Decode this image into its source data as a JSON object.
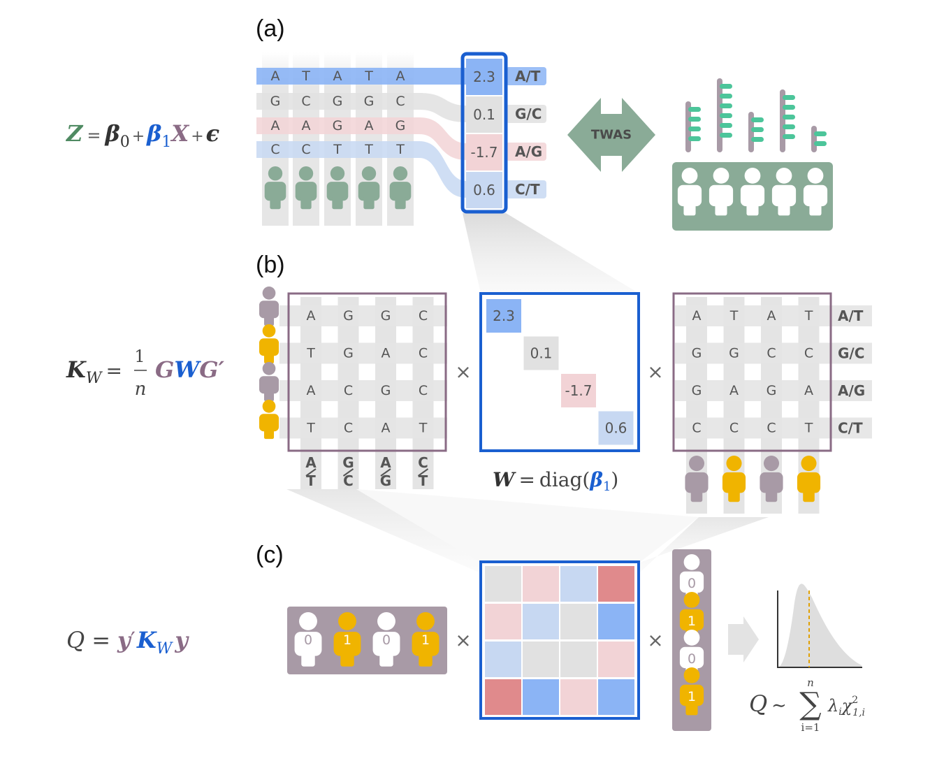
{
  "panels": {
    "a": "(a)",
    "b": "(b)",
    "c": "(c)"
  },
  "colors": {
    "green": "#8aab97",
    "purple": "#a89aa6",
    "gold": "#f0b400",
    "blue": "#1a5fd0",
    "lightblue": "#c7d8f2",
    "midblue": "#8bb4f5",
    "lightred": "#f2d3d6",
    "red": "#e08a8c",
    "grey": "#e1e1e1",
    "matrix_border": "#8a6b85",
    "twas_arrow": "#8aab97",
    "teal_bar": "#4cc59a"
  },
  "panel_a": {
    "equation": {
      "Z": "Z",
      "eq": "=",
      "beta0": "β",
      "sub0": "0",
      "plus1": "+",
      "beta1": "β",
      "sub1": "1",
      "X": "X",
      "plus2": "+",
      "eps": "ϵ"
    },
    "snp_rows": [
      [
        "A",
        "T",
        "A",
        "T",
        "A"
      ],
      [
        "G",
        "C",
        "G",
        "G",
        "C"
      ],
      [
        "A",
        "A",
        "G",
        "A",
        "G"
      ],
      [
        "C",
        "C",
        "T",
        "T",
        "T"
      ]
    ],
    "weights": [
      "2.3",
      "0.1",
      "-1.7",
      "0.6"
    ],
    "alleles": [
      "A/T",
      "G/C",
      "A/G",
      "C/T"
    ],
    "twas_label": "TWAS"
  },
  "panel_b": {
    "equation": {
      "K": "K",
      "sub": "W",
      "eq": "=",
      "num": "1",
      "den": "n",
      "G": "G",
      "W": "W",
      "Gp": "G′"
    },
    "G_matrix": [
      [
        "A",
        "G",
        "G",
        "C"
      ],
      [
        "T",
        "G",
        "A",
        "C"
      ],
      [
        "A",
        "C",
        "G",
        "C"
      ],
      [
        "T",
        "C",
        "A",
        "T"
      ]
    ],
    "G_col_alleles": [
      {
        "top": "A",
        "bottom": "T"
      },
      {
        "top": "G",
        "bottom": "C"
      },
      {
        "top": "A",
        "bottom": "G"
      },
      {
        "top": "C",
        "bottom": "T"
      }
    ],
    "W_diag": [
      "2.3",
      "0.1",
      "-1.7",
      "0.6"
    ],
    "W_caption": {
      "W": "W",
      "eq": "=",
      "diag": "diag(",
      "beta": "β",
      "sub": "1",
      "close": ")"
    },
    "Gt_matrix": [
      [
        "A",
        "T",
        "A",
        "T"
      ],
      [
        "G",
        "G",
        "C",
        "C"
      ],
      [
        "G",
        "A",
        "G",
        "A"
      ],
      [
        "C",
        "C",
        "C",
        "T"
      ]
    ],
    "Gt_row_alleles": [
      "A/T",
      "G/C",
      "A/G",
      "C/T"
    ],
    "times": "×"
  },
  "panel_c": {
    "equation": {
      "Q": "Q",
      "eq": "=",
      "y": "y",
      "prime": "′",
      "K": "K",
      "sub": "W",
      "y2": "y"
    },
    "phenotypes": [
      "0",
      "1",
      "0",
      "1"
    ],
    "kernel": [
      [
        "grey",
        "lightred",
        "lightblue",
        "red"
      ],
      [
        "lightred",
        "lightblue",
        "grey",
        "midblue"
      ],
      [
        "lightblue",
        "grey",
        "grey",
        "lightred"
      ],
      [
        "red",
        "midblue",
        "lightred",
        "midblue"
      ]
    ],
    "dist_eq": {
      "Q": "Q",
      "sim": "∼",
      "sum": "∑",
      "upper": "n",
      "lower": "i=1",
      "lambda": "λ",
      "lsub": "i",
      "chi": "χ",
      "csup": "2",
      "csub": "1,i"
    },
    "times": "×"
  }
}
